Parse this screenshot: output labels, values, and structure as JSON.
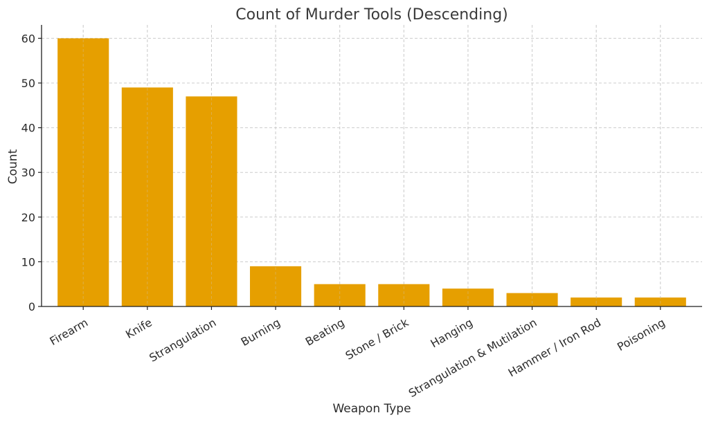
{
  "chart_data": {
    "type": "bar",
    "title": "Count of Murder Tools (Descending)",
    "xlabel": "Weapon Type",
    "ylabel": "Count",
    "categories": [
      "Firearm",
      "Knife",
      "Strangulation",
      "Burning",
      "Beating",
      "Stone / Brick",
      "Hanging",
      "Strangulation & Mutilation",
      "Hammer / Iron Rod",
      "Poisoning"
    ],
    "values": [
      60,
      49,
      47,
      9,
      5,
      5,
      4,
      3,
      2,
      2
    ],
    "ylim": [
      0,
      63
    ],
    "yticks": [
      0,
      10,
      20,
      30,
      40,
      50,
      60
    ],
    "grid": true,
    "bar_color": "#E69F00",
    "xtick_rotation": -30
  }
}
